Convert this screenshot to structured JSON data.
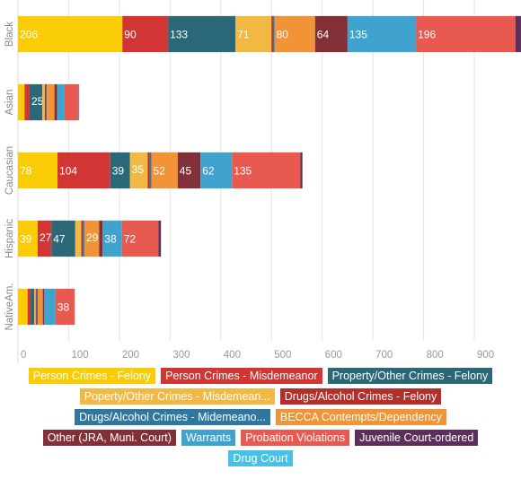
{
  "chart_data": {
    "type": "bar",
    "orientation": "horizontal",
    "stacked": true,
    "categories": [
      "Black",
      "Asian",
      "Caucasian",
      "Hispanic",
      "NativeAm."
    ],
    "xlim": [
      0,
      985
    ],
    "xticks": [
      0,
      100,
      200,
      300,
      400,
      500,
      600,
      700,
      800,
      900
    ],
    "grid": true,
    "legend_position": "bottom",
    "series": [
      {
        "name": "Person Crimes - Felony",
        "color": "#F9CC05",
        "values": [
          206,
          13,
          78,
          39,
          19
        ],
        "labels": [
          "206",
          "",
          "78",
          "39",
          ""
        ]
      },
      {
        "name": "Person Crimes - Misdemeanor",
        "color": "#D23634",
        "values": [
          90,
          10,
          104,
          27,
          6
        ],
        "labels": [
          "90",
          "",
          "104",
          "27",
          ""
        ]
      },
      {
        "name": "Property/Other Crimes - Felony",
        "color": "#2A6877",
        "values": [
          133,
          25,
          39,
          47,
          7
        ],
        "labels": [
          "133",
          "25",
          "39",
          "47",
          ""
        ]
      },
      {
        "name": "Poperty/Other Crimes - Misdemean...",
        "color": "#F2B844",
        "values": [
          71,
          5,
          35,
          12,
          3
        ],
        "labels": [
          "71",
          "",
          "35",
          "",
          ""
        ]
      },
      {
        "name": "Drugs/Alcohol Crimes - Felony",
        "color": "#B22F2B",
        "values": [
          3,
          2,
          4,
          3,
          2
        ],
        "labels": [
          "",
          "",
          "",
          "",
          ""
        ]
      },
      {
        "name": "Drugs/Alcohol Crimes - Midemeano...",
        "color": "#2F77A0",
        "values": [
          3,
          2,
          3,
          3,
          2
        ],
        "labels": [
          "",
          "",
          "",
          "",
          ""
        ]
      },
      {
        "name": "BECCA Contempts/Dependency",
        "color": "#F19437",
        "values": [
          80,
          15,
          52,
          29,
          10
        ],
        "labels": [
          "80",
          "",
          "52",
          "29",
          ""
        ]
      },
      {
        "name": "Other (JRA, Muni. Court)",
        "color": "#832F38",
        "values": [
          64,
          5,
          45,
          7,
          3
        ],
        "labels": [
          "64",
          "",
          "45",
          "",
          ""
        ]
      },
      {
        "name": "Warrants",
        "color": "#3FA3CE",
        "values": [
          135,
          15,
          62,
          38,
          22
        ],
        "labels": [
          "135",
          "",
          "62",
          "38",
          ""
        ]
      },
      {
        "name": "Probation Violations",
        "color": "#E85A50",
        "values": [
          196,
          27,
          135,
          72,
          38
        ],
        "labels": [
          "196",
          "",
          "135",
          "72",
          "38"
        ]
      },
      {
        "name": "Juvenile Court-ordered",
        "color": "#5C2E5C",
        "values": [
          11,
          1,
          4,
          5,
          0
        ],
        "labels": [
          "",
          "",
          "",
          "",
          ""
        ]
      },
      {
        "name": "Drug Court",
        "color": "#48C1E8",
        "values": [
          0,
          1,
          0,
          0,
          0
        ],
        "labels": [
          "",
          "",
          "",
          "",
          ""
        ]
      }
    ]
  }
}
